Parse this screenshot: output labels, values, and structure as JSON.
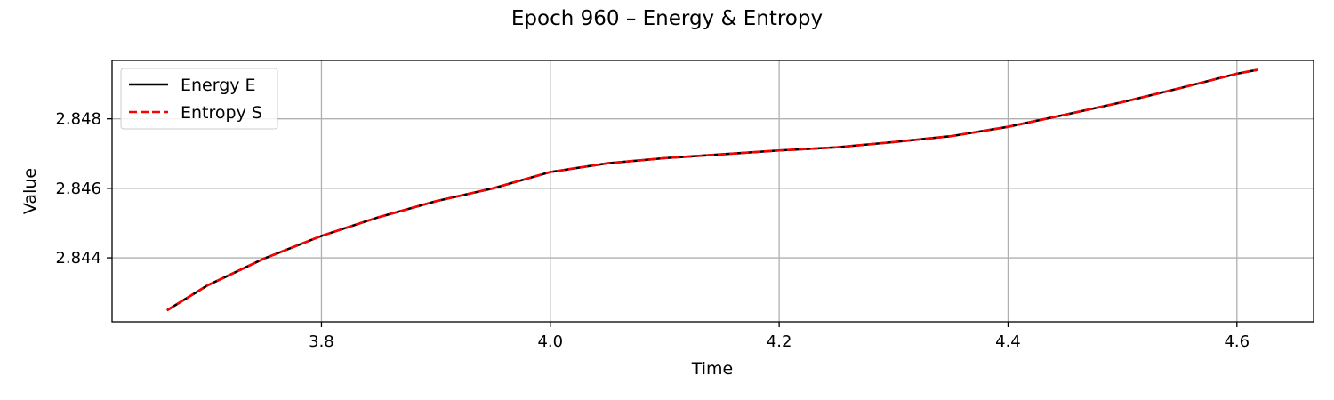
{
  "chart_data": {
    "type": "line",
    "title": "Epoch 960 – Energy & Entropy",
    "xlabel": "Time",
    "ylabel": "Value",
    "xlim": [
      3.617,
      4.667
    ],
    "ylim": [
      2.84216,
      2.84968
    ],
    "xticks": [
      3.8,
      4.0,
      4.2,
      4.4,
      4.6
    ],
    "xtick_labels": [
      "3.8",
      "4.0",
      "4.2",
      "4.4",
      "4.6"
    ],
    "yticks": [
      2.844,
      2.846,
      2.848
    ],
    "ytick_labels": [
      "2.844",
      "2.846",
      "2.848"
    ],
    "grid": true,
    "legend_position": "top-left",
    "series": [
      {
        "name": "Energy E",
        "color": "#000000",
        "style": "solid",
        "x": [
          3.665,
          3.7,
          3.75,
          3.8,
          3.85,
          3.9,
          3.95,
          4.0,
          4.05,
          4.1,
          4.15,
          4.2,
          4.25,
          4.3,
          4.35,
          4.4,
          4.45,
          4.5,
          4.55,
          4.6,
          4.618
        ],
        "y": [
          2.84249,
          2.8432,
          2.84398,
          2.84463,
          2.84517,
          2.84563,
          2.846,
          2.84647,
          2.84672,
          2.84687,
          2.84698,
          2.84709,
          2.84718,
          2.84733,
          2.8475,
          2.84777,
          2.84812,
          2.84848,
          2.84888,
          2.8493,
          2.84941
        ]
      },
      {
        "name": "Entropy S",
        "color": "#ff0000",
        "style": "dashed",
        "x": [
          3.665,
          3.7,
          3.75,
          3.8,
          3.85,
          3.9,
          3.95,
          4.0,
          4.05,
          4.1,
          4.15,
          4.2,
          4.25,
          4.3,
          4.35,
          4.4,
          4.45,
          4.5,
          4.55,
          4.6,
          4.618
        ],
        "y": [
          2.84249,
          2.8432,
          2.84398,
          2.84463,
          2.84517,
          2.84563,
          2.846,
          2.84647,
          2.84672,
          2.84687,
          2.84698,
          2.84709,
          2.84718,
          2.84733,
          2.8475,
          2.84777,
          2.84812,
          2.84848,
          2.84888,
          2.8493,
          2.84941
        ]
      }
    ]
  }
}
